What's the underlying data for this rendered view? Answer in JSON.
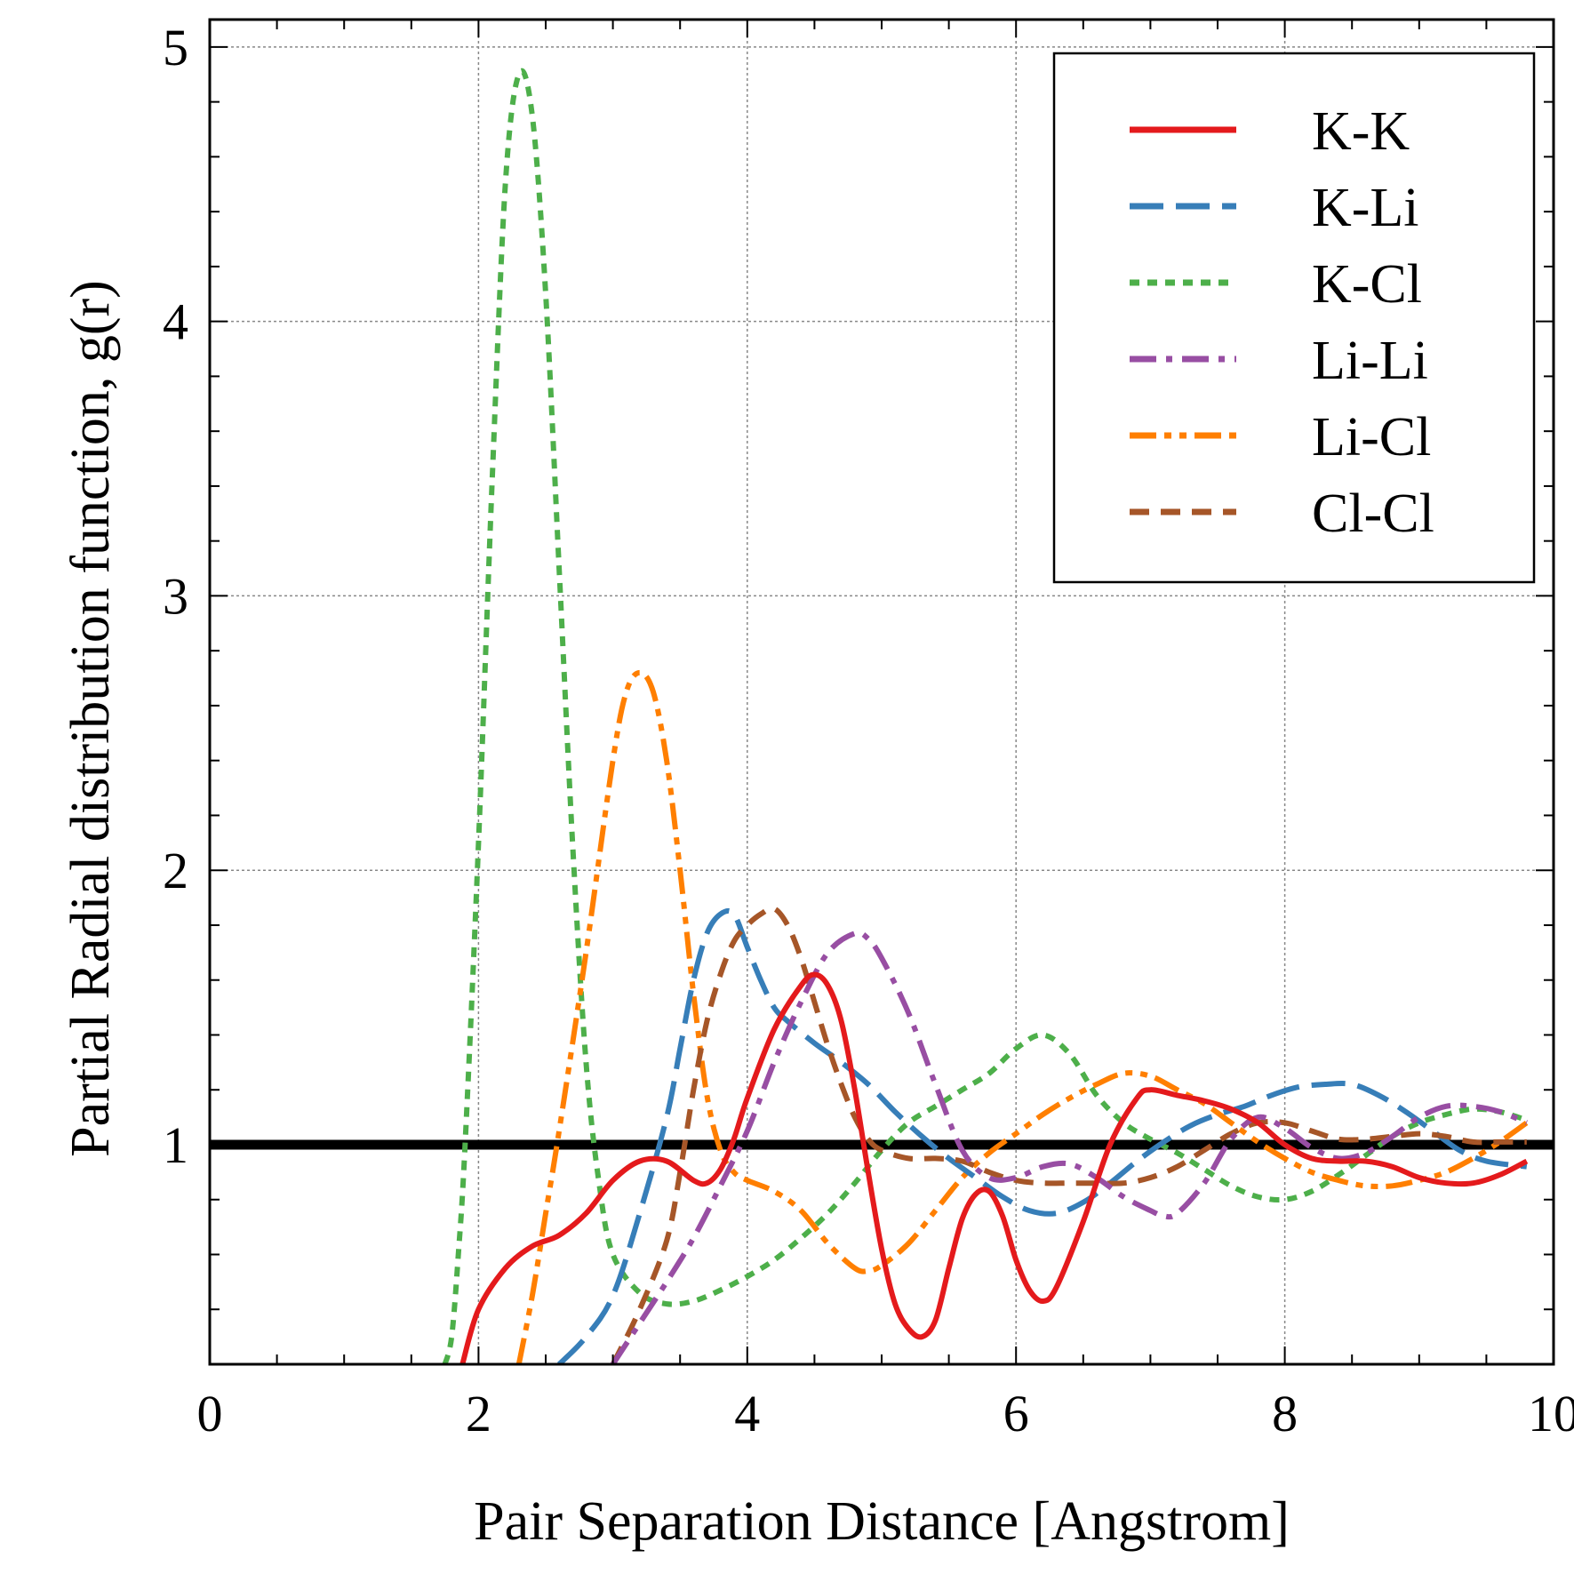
{
  "chart_data": {
    "type": "line",
    "title": "",
    "xlabel": "Pair Separation Distance [Angstrom]",
    "ylabel": "Partial Radial distribution function, g(r)",
    "xlim": [
      0,
      10
    ],
    "ylim": [
      0.2,
      5.1
    ],
    "xticks": [
      0,
      2,
      4,
      6,
      8,
      10
    ],
    "yticks": [
      1,
      2,
      3,
      4,
      5
    ],
    "grid": true,
    "legend_position": "top-right",
    "reference_line": {
      "y": 1,
      "color": "#000000"
    },
    "series": [
      {
        "name": "K-K",
        "color": "#e41a1c",
        "dash": "solid",
        "points": [
          [
            1.88,
            0.2
          ],
          [
            2.0,
            0.4
          ],
          [
            2.2,
            0.55
          ],
          [
            2.4,
            0.63
          ],
          [
            2.6,
            0.67
          ],
          [
            2.8,
            0.75
          ],
          [
            3.0,
            0.87
          ],
          [
            3.2,
            0.94
          ],
          [
            3.4,
            0.94
          ],
          [
            3.6,
            0.87
          ],
          [
            3.7,
            0.86
          ],
          [
            3.8,
            0.91
          ],
          [
            3.9,
            1.02
          ],
          [
            4.0,
            1.17
          ],
          [
            4.2,
            1.42
          ],
          [
            4.4,
            1.58
          ],
          [
            4.5,
            1.62
          ],
          [
            4.6,
            1.58
          ],
          [
            4.7,
            1.45
          ],
          [
            4.8,
            1.2
          ],
          [
            4.9,
            0.9
          ],
          [
            5.0,
            0.62
          ],
          [
            5.1,
            0.42
          ],
          [
            5.2,
            0.33
          ],
          [
            5.3,
            0.3
          ],
          [
            5.4,
            0.36
          ],
          [
            5.5,
            0.55
          ],
          [
            5.6,
            0.73
          ],
          [
            5.7,
            0.82
          ],
          [
            5.8,
            0.83
          ],
          [
            5.9,
            0.74
          ],
          [
            6.0,
            0.58
          ],
          [
            6.1,
            0.47
          ],
          [
            6.2,
            0.43
          ],
          [
            6.3,
            0.48
          ],
          [
            6.5,
            0.72
          ],
          [
            6.7,
            1.0
          ],
          [
            6.9,
            1.17
          ],
          [
            7.0,
            1.2
          ],
          [
            7.2,
            1.18
          ],
          [
            7.4,
            1.16
          ],
          [
            7.6,
            1.13
          ],
          [
            7.8,
            1.08
          ],
          [
            8.0,
            1.0
          ],
          [
            8.2,
            0.95
          ],
          [
            8.4,
            0.94
          ],
          [
            8.6,
            0.94
          ],
          [
            8.8,
            0.92
          ],
          [
            9.0,
            0.88
          ],
          [
            9.2,
            0.86
          ],
          [
            9.4,
            0.86
          ],
          [
            9.6,
            0.89
          ],
          [
            9.8,
            0.94
          ]
        ]
      },
      {
        "name": "K-Li",
        "color": "#377eb8",
        "dash": "long-dash",
        "points": [
          [
            2.6,
            0.2
          ],
          [
            2.8,
            0.3
          ],
          [
            3.0,
            0.45
          ],
          [
            3.2,
            0.75
          ],
          [
            3.4,
            1.1
          ],
          [
            3.5,
            1.35
          ],
          [
            3.6,
            1.6
          ],
          [
            3.7,
            1.77
          ],
          [
            3.8,
            1.84
          ],
          [
            3.9,
            1.84
          ],
          [
            4.0,
            1.72
          ],
          [
            4.1,
            1.6
          ],
          [
            4.2,
            1.5
          ],
          [
            4.3,
            1.45
          ],
          [
            4.5,
            1.37
          ],
          [
            4.7,
            1.3
          ],
          [
            4.9,
            1.22
          ],
          [
            5.1,
            1.12
          ],
          [
            5.3,
            1.03
          ],
          [
            5.5,
            0.95
          ],
          [
            5.7,
            0.88
          ],
          [
            5.9,
            0.81
          ],
          [
            6.1,
            0.76
          ],
          [
            6.3,
            0.75
          ],
          [
            6.5,
            0.79
          ],
          [
            6.7,
            0.86
          ],
          [
            6.9,
            0.94
          ],
          [
            7.1,
            1.01
          ],
          [
            7.3,
            1.07
          ],
          [
            7.5,
            1.11
          ],
          [
            7.7,
            1.14
          ],
          [
            7.9,
            1.18
          ],
          [
            8.1,
            1.21
          ],
          [
            8.3,
            1.22
          ],
          [
            8.5,
            1.22
          ],
          [
            8.7,
            1.18
          ],
          [
            8.9,
            1.12
          ],
          [
            9.1,
            1.05
          ],
          [
            9.3,
            0.98
          ],
          [
            9.5,
            0.94
          ],
          [
            9.8,
            0.92
          ]
        ]
      },
      {
        "name": "K-Cl",
        "color": "#4daf4a",
        "dash": "short-dash",
        "points": [
          [
            1.75,
            0.2
          ],
          [
            1.8,
            0.3
          ],
          [
            1.85,
            0.6
          ],
          [
            1.9,
            1.0
          ],
          [
            2.0,
            2.1
          ],
          [
            2.1,
            3.4
          ],
          [
            2.2,
            4.5
          ],
          [
            2.3,
            4.9
          ],
          [
            2.4,
            4.75
          ],
          [
            2.5,
            4.1
          ],
          [
            2.6,
            3.1
          ],
          [
            2.7,
            2.1
          ],
          [
            2.8,
            1.3
          ],
          [
            2.9,
            0.85
          ],
          [
            3.0,
            0.6
          ],
          [
            3.2,
            0.46
          ],
          [
            3.4,
            0.42
          ],
          [
            3.6,
            0.43
          ],
          [
            3.8,
            0.47
          ],
          [
            4.0,
            0.52
          ],
          [
            4.2,
            0.58
          ],
          [
            4.4,
            0.66
          ],
          [
            4.6,
            0.75
          ],
          [
            4.8,
            0.86
          ],
          [
            5.0,
            0.98
          ],
          [
            5.2,
            1.08
          ],
          [
            5.4,
            1.14
          ],
          [
            5.6,
            1.2
          ],
          [
            5.8,
            1.26
          ],
          [
            6.0,
            1.35
          ],
          [
            6.2,
            1.4
          ],
          [
            6.4,
            1.33
          ],
          [
            6.6,
            1.18
          ],
          [
            6.8,
            1.08
          ],
          [
            7.0,
            1.02
          ],
          [
            7.2,
            0.97
          ],
          [
            7.4,
            0.91
          ],
          [
            7.6,
            0.85
          ],
          [
            7.8,
            0.81
          ],
          [
            8.0,
            0.8
          ],
          [
            8.2,
            0.83
          ],
          [
            8.4,
            0.89
          ],
          [
            8.6,
            0.96
          ],
          [
            8.8,
            1.03
          ],
          [
            9.0,
            1.08
          ],
          [
            9.2,
            1.11
          ],
          [
            9.4,
            1.13
          ],
          [
            9.6,
            1.12
          ],
          [
            9.8,
            1.09
          ]
        ]
      },
      {
        "name": "Li-Li",
        "color": "#984ea3",
        "dash": "dash-dot",
        "points": [
          [
            3.0,
            0.2
          ],
          [
            3.2,
            0.35
          ],
          [
            3.4,
            0.5
          ],
          [
            3.6,
            0.66
          ],
          [
            3.8,
            0.85
          ],
          [
            4.0,
            1.05
          ],
          [
            4.2,
            1.3
          ],
          [
            4.4,
            1.52
          ],
          [
            4.6,
            1.7
          ],
          [
            4.8,
            1.77
          ],
          [
            4.9,
            1.75
          ],
          [
            5.0,
            1.68
          ],
          [
            5.2,
            1.48
          ],
          [
            5.4,
            1.22
          ],
          [
            5.6,
            0.98
          ],
          [
            5.8,
            0.88
          ],
          [
            6.0,
            0.88
          ],
          [
            6.2,
            0.92
          ],
          [
            6.4,
            0.93
          ],
          [
            6.6,
            0.88
          ],
          [
            6.8,
            0.81
          ],
          [
            7.0,
            0.76
          ],
          [
            7.1,
            0.74
          ],
          [
            7.2,
            0.75
          ],
          [
            7.4,
            0.86
          ],
          [
            7.6,
            1.02
          ],
          [
            7.8,
            1.1
          ],
          [
            8.0,
            1.06
          ],
          [
            8.2,
            0.99
          ],
          [
            8.4,
            0.95
          ],
          [
            8.6,
            0.97
          ],
          [
            8.8,
            1.03
          ],
          [
            9.0,
            1.1
          ],
          [
            9.2,
            1.14
          ],
          [
            9.4,
            1.14
          ],
          [
            9.6,
            1.12
          ],
          [
            9.8,
            1.08
          ]
        ]
      },
      {
        "name": "Li-Cl",
        "color": "#ff7f00",
        "dash": "dash-dot-dot",
        "points": [
          [
            2.3,
            0.2
          ],
          [
            2.4,
            0.45
          ],
          [
            2.5,
            0.75
          ],
          [
            2.6,
            1.05
          ],
          [
            2.8,
            1.7
          ],
          [
            3.0,
            2.4
          ],
          [
            3.1,
            2.65
          ],
          [
            3.2,
            2.72
          ],
          [
            3.3,
            2.65
          ],
          [
            3.4,
            2.4
          ],
          [
            3.5,
            2.0
          ],
          [
            3.6,
            1.55
          ],
          [
            3.7,
            1.18
          ],
          [
            3.8,
            0.98
          ],
          [
            3.9,
            0.9
          ],
          [
            4.0,
            0.87
          ],
          [
            4.2,
            0.83
          ],
          [
            4.4,
            0.76
          ],
          [
            4.6,
            0.64
          ],
          [
            4.8,
            0.55
          ],
          [
            4.9,
            0.54
          ],
          [
            5.0,
            0.56
          ],
          [
            5.2,
            0.64
          ],
          [
            5.4,
            0.76
          ],
          [
            5.6,
            0.88
          ],
          [
            5.8,
            0.97
          ],
          [
            6.0,
            1.04
          ],
          [
            6.2,
            1.11
          ],
          [
            6.4,
            1.17
          ],
          [
            6.6,
            1.22
          ],
          [
            6.8,
            1.26
          ],
          [
            7.0,
            1.25
          ],
          [
            7.2,
            1.2
          ],
          [
            7.4,
            1.15
          ],
          [
            7.6,
            1.08
          ],
          [
            7.8,
            1.01
          ],
          [
            8.0,
            0.95
          ],
          [
            8.2,
            0.9
          ],
          [
            8.4,
            0.87
          ],
          [
            8.6,
            0.85
          ],
          [
            8.8,
            0.85
          ],
          [
            9.0,
            0.87
          ],
          [
            9.2,
            0.9
          ],
          [
            9.4,
            0.95
          ],
          [
            9.6,
            1.01
          ],
          [
            9.8,
            1.08
          ]
        ]
      },
      {
        "name": "Cl-Cl",
        "color": "#a65628",
        "dash": "medium-dash",
        "points": [
          [
            3.0,
            0.2
          ],
          [
            3.2,
            0.4
          ],
          [
            3.4,
            0.65
          ],
          [
            3.5,
            0.9
          ],
          [
            3.6,
            1.2
          ],
          [
            3.7,
            1.45
          ],
          [
            3.8,
            1.62
          ],
          [
            3.9,
            1.74
          ],
          [
            4.0,
            1.8
          ],
          [
            4.1,
            1.84
          ],
          [
            4.2,
            1.86
          ],
          [
            4.3,
            1.8
          ],
          [
            4.4,
            1.68
          ],
          [
            4.5,
            1.52
          ],
          [
            4.6,
            1.36
          ],
          [
            4.7,
            1.22
          ],
          [
            4.8,
            1.1
          ],
          [
            4.9,
            1.02
          ],
          [
            5.0,
            0.98
          ],
          [
            5.2,
            0.95
          ],
          [
            5.4,
            0.95
          ],
          [
            5.6,
            0.94
          ],
          [
            5.8,
            0.9
          ],
          [
            6.0,
            0.87
          ],
          [
            6.2,
            0.86
          ],
          [
            6.4,
            0.86
          ],
          [
            6.6,
            0.86
          ],
          [
            6.8,
            0.86
          ],
          [
            7.0,
            0.88
          ],
          [
            7.2,
            0.92
          ],
          [
            7.4,
            0.98
          ],
          [
            7.6,
            1.04
          ],
          [
            7.8,
            1.08
          ],
          [
            8.0,
            1.08
          ],
          [
            8.2,
            1.05
          ],
          [
            8.4,
            1.02
          ],
          [
            8.6,
            1.02
          ],
          [
            8.8,
            1.03
          ],
          [
            9.0,
            1.04
          ],
          [
            9.2,
            1.03
          ],
          [
            9.4,
            1.01
          ],
          [
            9.6,
            1.01
          ],
          [
            9.8,
            1.01
          ]
        ]
      }
    ]
  }
}
